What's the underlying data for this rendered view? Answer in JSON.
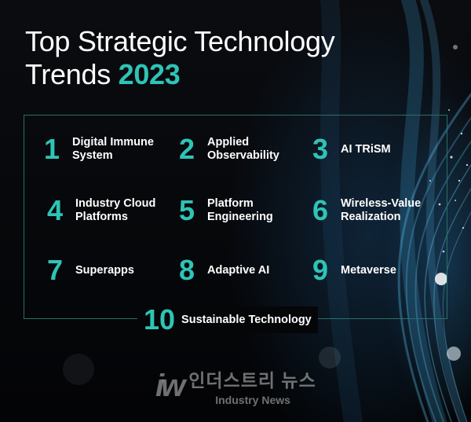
{
  "title": {
    "line1": "Top Strategic Technology",
    "line2_text": "Trends ",
    "year": "2023"
  },
  "trends": [
    {
      "number": "1",
      "label": "Digital Immune\nSystem"
    },
    {
      "number": "2",
      "label": "Applied\nObservability"
    },
    {
      "number": "3",
      "label": "AI TRiSM"
    },
    {
      "number": "4",
      "label": "Industry Cloud\nPlatforms"
    },
    {
      "number": "5",
      "label": "Platform\nEngineering"
    },
    {
      "number": "6",
      "label": "Wireless-Value\nRealization"
    },
    {
      "number": "7",
      "label": "Superapps"
    },
    {
      "number": "8",
      "label": "Adaptive AI"
    },
    {
      "number": "9",
      "label": "Metaverse"
    },
    {
      "number": "10",
      "label": "Sustainable Technology"
    }
  ],
  "watermark": {
    "mark": "iw",
    "korean": "인더스트리 뉴스",
    "english": "Industry News"
  },
  "colors": {
    "accent": "#2ec4b6",
    "frame": "#2a6f6a",
    "background": "#050608"
  }
}
